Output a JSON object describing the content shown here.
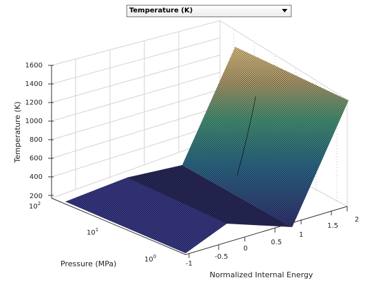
{
  "variable_selector": {
    "selected": "Temperature (K)",
    "options": [
      "Temperature (K)"
    ]
  },
  "colors": {
    "surface_low": "#2f2f6b",
    "surface_high": "#e8d98a",
    "mesh": "#000000",
    "grid": "#d0d0d0"
  },
  "chart_data": {
    "type": "surface",
    "zlabel": "Temperature (K)",
    "xlabel": "Normalized Internal Energy",
    "ylabel": "Pressure (MPa)",
    "z_ticks": [
      "1600",
      "1400",
      "1200",
      "1000",
      "800",
      "600",
      "400",
      "200"
    ],
    "x_ticks": [
      "-1",
      "-0.5",
      "0",
      "0.5",
      "1",
      "1.5",
      "2"
    ],
    "y_ticks": [
      {
        "base": "10",
        "exp": "2"
      },
      {
        "base": "10",
        "exp": "1"
      },
      {
        "base": "10",
        "exp": "0"
      }
    ],
    "zlim": [
      200,
      1600
    ],
    "xlim": [
      -1,
      2
    ],
    "y_scale": "log",
    "ylim": [
      1,
      100
    ],
    "grid": true
  }
}
